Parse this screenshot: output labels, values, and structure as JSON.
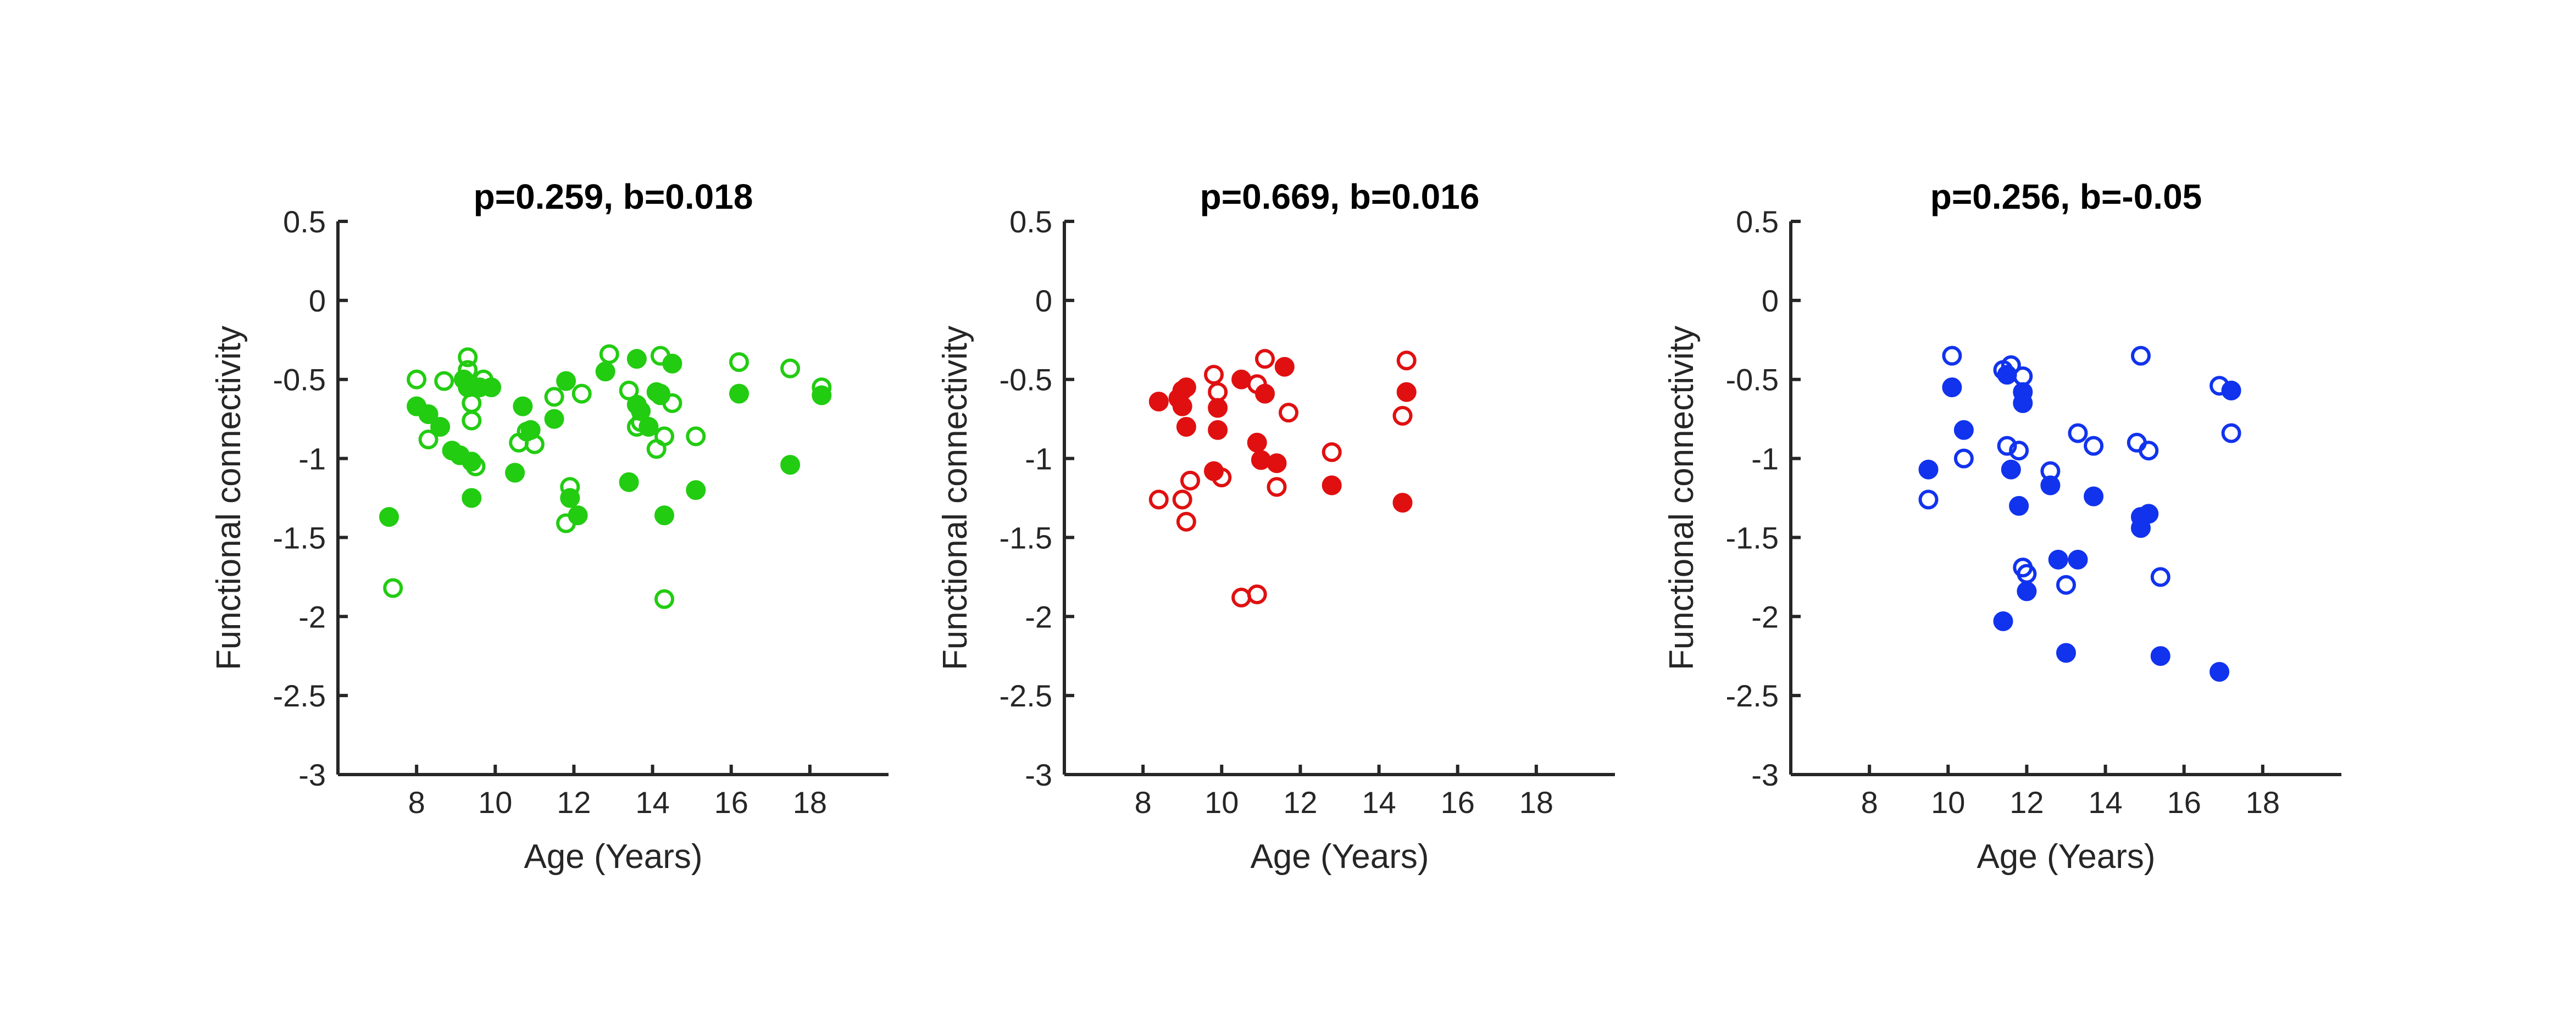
{
  "chart_data": [
    {
      "type": "scatter",
      "title": "p=0.259, b=0.018",
      "xlabel": "Age (Years)",
      "ylabel": "Functional connectivity",
      "xlim": [
        6,
        20
      ],
      "ylim": [
        -3,
        0.5
      ],
      "xticks": [
        "8",
        "10",
        "12",
        "14",
        "16",
        "18"
      ],
      "yticks": [
        "0.5",
        "0",
        "-0.5",
        "-1",
        "-1.5",
        "-2",
        "-2.5",
        "-3"
      ],
      "color": "#22cc11",
      "series": [
        {
          "marker": "filled",
          "points": [
            [
              7.3,
              -1.37
            ],
            [
              8.0,
              -0.67
            ],
            [
              8.3,
              -0.72
            ],
            [
              8.6,
              -0.8
            ],
            [
              8.9,
              -0.95
            ],
            [
              9.1,
              -0.98
            ],
            [
              9.2,
              -0.5
            ],
            [
              9.3,
              -0.55
            ],
            [
              9.4,
              -1.02
            ],
            [
              9.4,
              -1.25
            ],
            [
              9.6,
              -0.55
            ],
            [
              9.9,
              -0.55
            ],
            [
              10.5,
              -1.09
            ],
            [
              10.7,
              -0.67
            ],
            [
              10.9,
              -0.82
            ],
            [
              11.5,
              -0.75
            ],
            [
              11.8,
              -0.51
            ],
            [
              11.9,
              -1.25
            ],
            [
              12.1,
              -1.36
            ],
            [
              12.8,
              -0.45
            ],
            [
              13.4,
              -1.15
            ],
            [
              13.6,
              -0.37
            ],
            [
              13.6,
              -0.66
            ],
            [
              13.7,
              -0.7
            ],
            [
              13.9,
              -0.8
            ],
            [
              14.1,
              -0.58
            ],
            [
              14.2,
              -0.6
            ],
            [
              14.3,
              -1.36
            ],
            [
              14.5,
              -0.4
            ],
            [
              15.1,
              -1.2
            ],
            [
              16.2,
              -0.59
            ],
            [
              17.5,
              -1.04
            ],
            [
              18.3,
              -0.6
            ]
          ]
        },
        {
          "marker": "open",
          "points": [
            [
              7.4,
              -1.82
            ],
            [
              8.0,
              -0.5
            ],
            [
              8.3,
              -0.88
            ],
            [
              8.7,
              -0.51
            ],
            [
              9.3,
              -0.36
            ],
            [
              9.3,
              -0.44
            ],
            [
              9.4,
              -0.65
            ],
            [
              9.4,
              -0.76
            ],
            [
              9.5,
              -1.05
            ],
            [
              9.7,
              -0.5
            ],
            [
              10.6,
              -0.9
            ],
            [
              10.8,
              -0.83
            ],
            [
              11.0,
              -0.91
            ],
            [
              11.5,
              -0.61
            ],
            [
              11.8,
              -1.41
            ],
            [
              11.9,
              -1.18
            ],
            [
              12.2,
              -0.59
            ],
            [
              12.9,
              -0.34
            ],
            [
              13.4,
              -0.57
            ],
            [
              13.6,
              -0.8
            ],
            [
              13.7,
              -0.77
            ],
            [
              14.1,
              -0.94
            ],
            [
              14.2,
              -0.35
            ],
            [
              14.2,
              -0.59
            ],
            [
              14.3,
              -0.86
            ],
            [
              14.3,
              -1.89
            ],
            [
              14.5,
              -0.65
            ],
            [
              15.1,
              -0.86
            ],
            [
              16.2,
              -0.39
            ],
            [
              17.5,
              -0.43
            ],
            [
              18.3,
              -0.55
            ]
          ]
        }
      ]
    },
    {
      "type": "scatter",
      "title": "p=0.669, b=0.016",
      "xlabel": "Age (Years)",
      "ylabel": "Functional connectivity",
      "xlim": [
        6,
        20
      ],
      "ylim": [
        -3,
        0.5
      ],
      "xticks": [
        "8",
        "10",
        "12",
        "14",
        "16",
        "18"
      ],
      "yticks": [
        "0.5",
        "0",
        "-0.5",
        "-1",
        "-1.5",
        "-2",
        "-2.5",
        "-3"
      ],
      "color": "#e01010",
      "series": [
        {
          "marker": "filled",
          "points": [
            [
              8.4,
              -0.64
            ],
            [
              8.9,
              -0.62
            ],
            [
              9.0,
              -0.57
            ],
            [
              9.0,
              -0.67
            ],
            [
              9.1,
              -0.55
            ],
            [
              9.1,
              -0.8
            ],
            [
              9.8,
              -1.08
            ],
            [
              9.9,
              -0.68
            ],
            [
              9.9,
              -0.82
            ],
            [
              10.5,
              -0.5
            ],
            [
              10.9,
              -0.9
            ],
            [
              11.0,
              -1.01
            ],
            [
              11.1,
              -0.59
            ],
            [
              11.4,
              -1.03
            ],
            [
              11.6,
              -0.42
            ],
            [
              12.8,
              -1.17
            ],
            [
              14.6,
              -1.28
            ],
            [
              14.7,
              -0.58
            ]
          ]
        },
        {
          "marker": "open",
          "points": [
            [
              8.4,
              -1.26
            ],
            [
              9.0,
              -1.26
            ],
            [
              9.1,
              -1.4
            ],
            [
              9.2,
              -1.14
            ],
            [
              9.8,
              -0.47
            ],
            [
              9.9,
              -0.58
            ],
            [
              10.0,
              -1.12
            ],
            [
              10.5,
              -1.88
            ],
            [
              10.9,
              -0.53
            ],
            [
              10.9,
              -1.86
            ],
            [
              11.1,
              -0.37
            ],
            [
              11.4,
              -1.18
            ],
            [
              11.7,
              -0.71
            ],
            [
              12.8,
              -0.96
            ],
            [
              14.6,
              -0.73
            ],
            [
              14.7,
              -0.38
            ]
          ]
        }
      ]
    },
    {
      "type": "scatter",
      "title": "p=0.256, b=-0.05",
      "xlabel": "Age (Years)",
      "ylabel": "Functional connectivity",
      "xlim": [
        6,
        20
      ],
      "ylim": [
        -3,
        0.5
      ],
      "xticks": [
        "8",
        "10",
        "12",
        "14",
        "16",
        "18"
      ],
      "yticks": [
        "0.5",
        "0",
        "-0.5",
        "-1",
        "-1.5",
        "-2",
        "-2.5",
        "-3"
      ],
      "color": "#1133ee",
      "series": [
        {
          "marker": "filled",
          "points": [
            [
              9.5,
              -1.07
            ],
            [
              10.1,
              -0.55
            ],
            [
              10.4,
              -0.82
            ],
            [
              11.4,
              -2.03
            ],
            [
              11.5,
              -0.47
            ],
            [
              11.6,
              -1.07
            ],
            [
              11.8,
              -1.3
            ],
            [
              11.9,
              -0.58
            ],
            [
              11.9,
              -0.65
            ],
            [
              12.0,
              -1.84
            ],
            [
              12.6,
              -1.17
            ],
            [
              12.8,
              -1.64
            ],
            [
              13.0,
              -2.23
            ],
            [
              13.3,
              -1.64
            ],
            [
              13.7,
              -1.24
            ],
            [
              14.9,
              -1.37
            ],
            [
              14.9,
              -1.44
            ],
            [
              15.1,
              -1.35
            ],
            [
              15.4,
              -2.25
            ],
            [
              16.9,
              -2.35
            ],
            [
              17.2,
              -0.57
            ]
          ]
        },
        {
          "marker": "open",
          "points": [
            [
              9.5,
              -1.26
            ],
            [
              10.1,
              -0.35
            ],
            [
              10.4,
              -1.0
            ],
            [
              11.4,
              -0.44
            ],
            [
              11.5,
              -0.92
            ],
            [
              11.6,
              -0.41
            ],
            [
              11.8,
              -0.95
            ],
            [
              11.9,
              -0.48
            ],
            [
              11.9,
              -1.69
            ],
            [
              12.0,
              -1.73
            ],
            [
              12.6,
              -1.08
            ],
            [
              13.0,
              -1.8
            ],
            [
              13.3,
              -0.84
            ],
            [
              13.7,
              -0.92
            ],
            [
              14.8,
              -0.9
            ],
            [
              14.9,
              -0.35
            ],
            [
              15.1,
              -0.95
            ],
            [
              15.4,
              -1.75
            ],
            [
              16.9,
              -0.54
            ],
            [
              17.2,
              -0.84
            ]
          ]
        }
      ]
    }
  ]
}
